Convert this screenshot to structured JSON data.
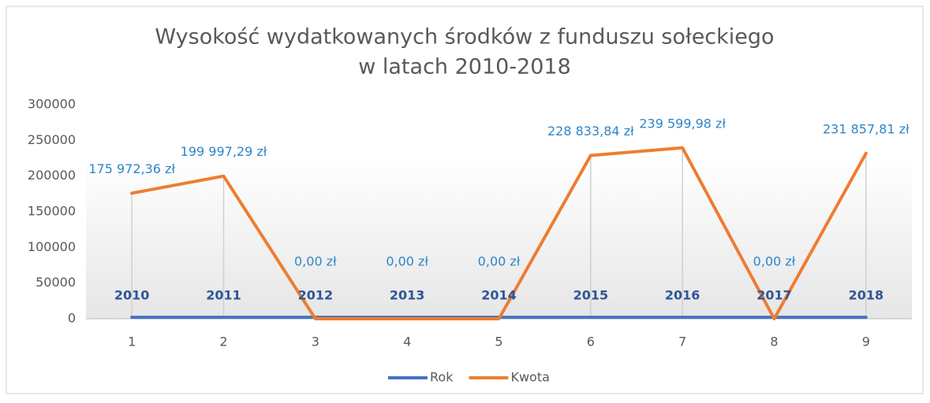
{
  "chart_data": {
    "type": "line",
    "title": [
      "Wysokość wydatkowanych środków z funduszu sołeckiego",
      "w latach 2010-2018"
    ],
    "categories": [
      "1",
      "2",
      "3",
      "4",
      "5",
      "6",
      "7",
      "8",
      "9"
    ],
    "series": [
      {
        "name": "Rok",
        "color": "#4472c4",
        "label_color": "#2f5597",
        "values": [
          2010,
          2011,
          2012,
          2013,
          2014,
          2015,
          2016,
          2017,
          2018
        ]
      },
      {
        "name": "Kwota",
        "color": "#ed7d31",
        "label_color": "#2e86c8",
        "values": [
          175972.36,
          199997.29,
          0,
          0,
          0,
          228833.84,
          239599.98,
          0,
          231857.81
        ],
        "value_labels": [
          "175 972,36 zł",
          "199 997,29 zł",
          "0,00 zł",
          "0,00 zł",
          "0,00 zł",
          "228 833,84 zł",
          "239 599,98 zł",
          "0,00 zł",
          "231 857,81 zł"
        ]
      }
    ],
    "ylim": [
      0,
      300000
    ],
    "yticks": [
      0,
      50000,
      100000,
      150000,
      200000,
      250000,
      300000
    ],
    "legend": "bottom",
    "drop_lines": true
  }
}
